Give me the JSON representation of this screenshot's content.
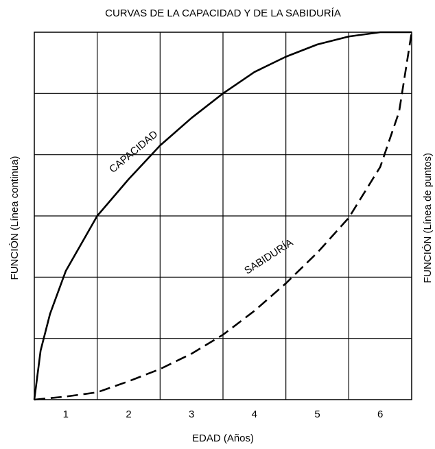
{
  "chart_data": {
    "type": "line",
    "title": "CURVAS DE LA CAPACIDAD Y DE LA SABIDURÍA",
    "xlabel": "EDAD (Años)",
    "ylabel": "FUNCIÓN (Línea continua)",
    "y2label": "FUNCIÓN (Línea de puntos)",
    "xlim": [
      0.5,
      6.5
    ],
    "ylim": [
      0,
      6
    ],
    "xticks": [
      1,
      2,
      3,
      4,
      5,
      6
    ],
    "xgrid": [
      1.5,
      2.5,
      3.5,
      4.5,
      5.5
    ],
    "ygrid": [
      1,
      2,
      3,
      4,
      5
    ],
    "grid": true,
    "series": [
      {
        "name": "CAPACIDAD",
        "color": "#000000",
        "linestyle": "solid",
        "x": [
          0.5,
          0.6,
          0.75,
          1,
          1.5,
          2,
          2.5,
          3,
          3.5,
          4,
          4.5,
          5,
          5.5,
          6,
          6.5
        ],
        "values": [
          0,
          0.8,
          1.4,
          2.1,
          3,
          3.6,
          4.15,
          4.6,
          5,
          5.35,
          5.6,
          5.8,
          5.93,
          6,
          6
        ]
      },
      {
        "name": "SABIDURÍA",
        "color": "#000000",
        "linestyle": "dashed",
        "x": [
          0.5,
          1,
          1.5,
          2,
          2.5,
          3,
          3.5,
          4,
          4.5,
          5,
          5.5,
          6,
          6.3,
          6.5
        ],
        "values": [
          0,
          0.05,
          0.12,
          0.3,
          0.5,
          0.75,
          1.06,
          1.45,
          1.9,
          2.4,
          2.97,
          3.8,
          4.7,
          6
        ]
      }
    ]
  }
}
